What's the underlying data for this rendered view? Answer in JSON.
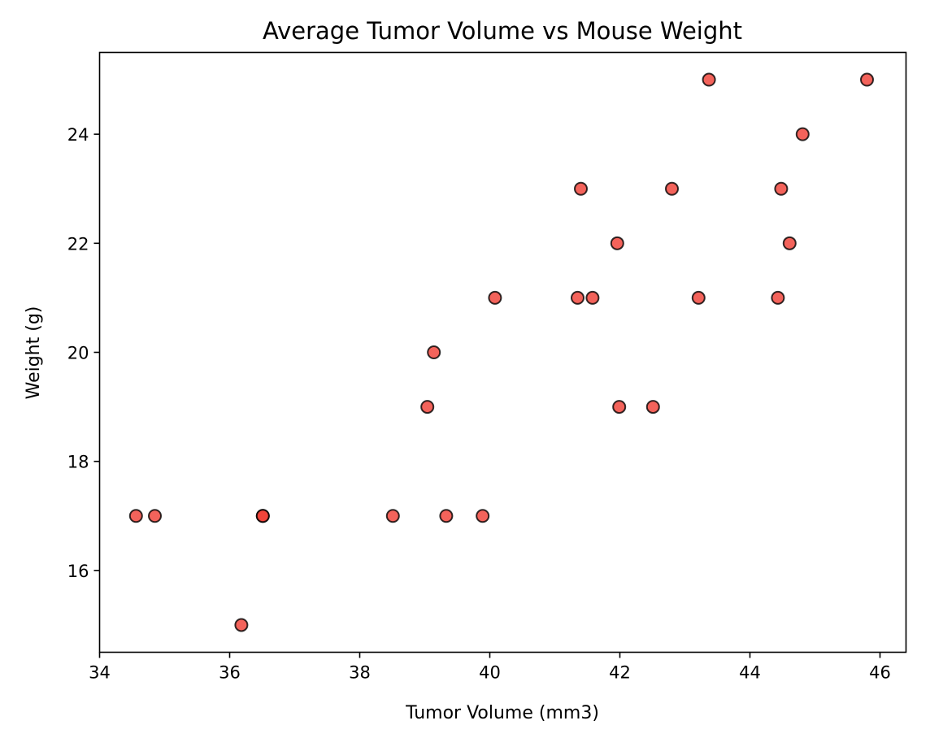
{
  "chart_data": {
    "type": "scatter",
    "title": "Average Tumor Volume vs Mouse Weight",
    "xlabel": "Tumor Volume (mm3)",
    "ylabel": "Weight (g)",
    "xlim": [
      34,
      46.4
    ],
    "ylim": [
      14.5,
      25.5
    ],
    "xticks": [
      34,
      36,
      38,
      40,
      42,
      44,
      46
    ],
    "yticks": [
      16,
      18,
      20,
      22,
      24
    ],
    "grid": false,
    "legend": "none",
    "marker_color": "#f03c32",
    "marker_edge_color": "#000000",
    "points": [
      {
        "x": 34.56,
        "y": 17
      },
      {
        "x": 34.85,
        "y": 17
      },
      {
        "x": 36.18,
        "y": 15
      },
      {
        "x": 36.51,
        "y": 17
      },
      {
        "x": 36.51,
        "y": 17
      },
      {
        "x": 38.51,
        "y": 17
      },
      {
        "x": 39.33,
        "y": 17
      },
      {
        "x": 39.89,
        "y": 17
      },
      {
        "x": 39.04,
        "y": 19
      },
      {
        "x": 39.14,
        "y": 20
      },
      {
        "x": 40.08,
        "y": 21
      },
      {
        "x": 41.35,
        "y": 21
      },
      {
        "x": 41.58,
        "y": 21
      },
      {
        "x": 41.4,
        "y": 23
      },
      {
        "x": 41.96,
        "y": 22
      },
      {
        "x": 41.99,
        "y": 19
      },
      {
        "x": 42.51,
        "y": 19
      },
      {
        "x": 42.8,
        "y": 23
      },
      {
        "x": 43.21,
        "y": 21
      },
      {
        "x": 43.37,
        "y": 25
      },
      {
        "x": 44.43,
        "y": 21
      },
      {
        "x": 44.48,
        "y": 23
      },
      {
        "x": 44.61,
        "y": 22
      },
      {
        "x": 44.81,
        "y": 24
      },
      {
        "x": 45.8,
        "y": 25
      }
    ]
  }
}
